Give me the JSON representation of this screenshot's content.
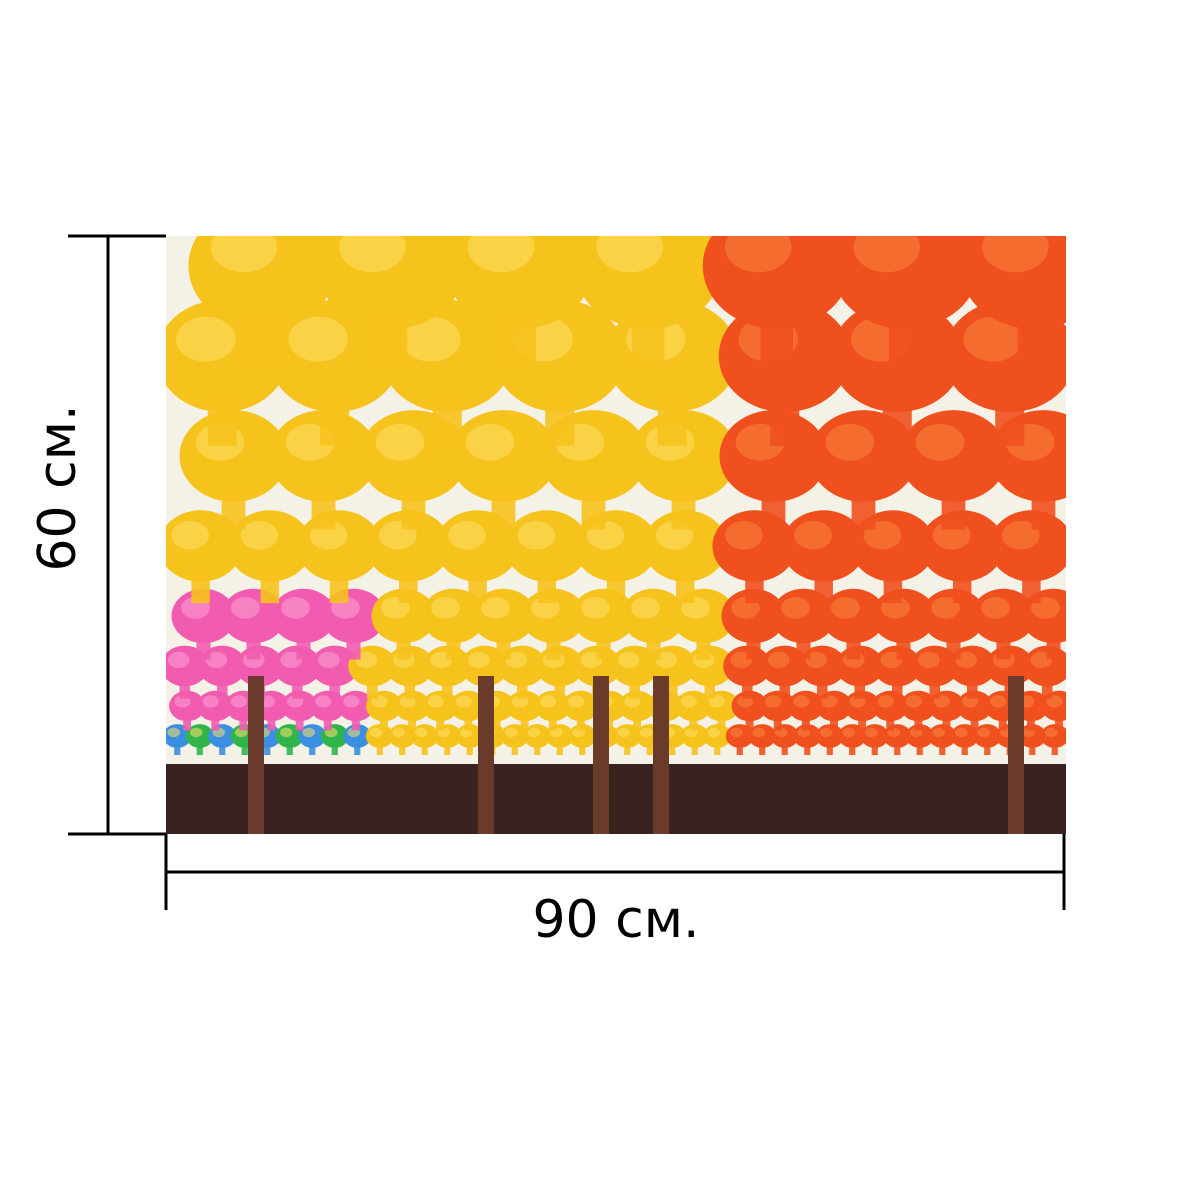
{
  "dimensions": {
    "width_label": "90 см.",
    "height_label": "60 см."
  },
  "photo": {
    "palette": {
      "sky": "#f4f1e6",
      "yellow": "#f6c21c",
      "yellow_light": "#fde06a",
      "orange": "#f0501e",
      "orange_light": "#f7853e",
      "pink": "#f25cb0",
      "green": "#2fb54a",
      "blue": "#3a8fe0",
      "shadow": "#3a2220",
      "wood": "#6a3a2a"
    }
  },
  "line_color": "#000000"
}
